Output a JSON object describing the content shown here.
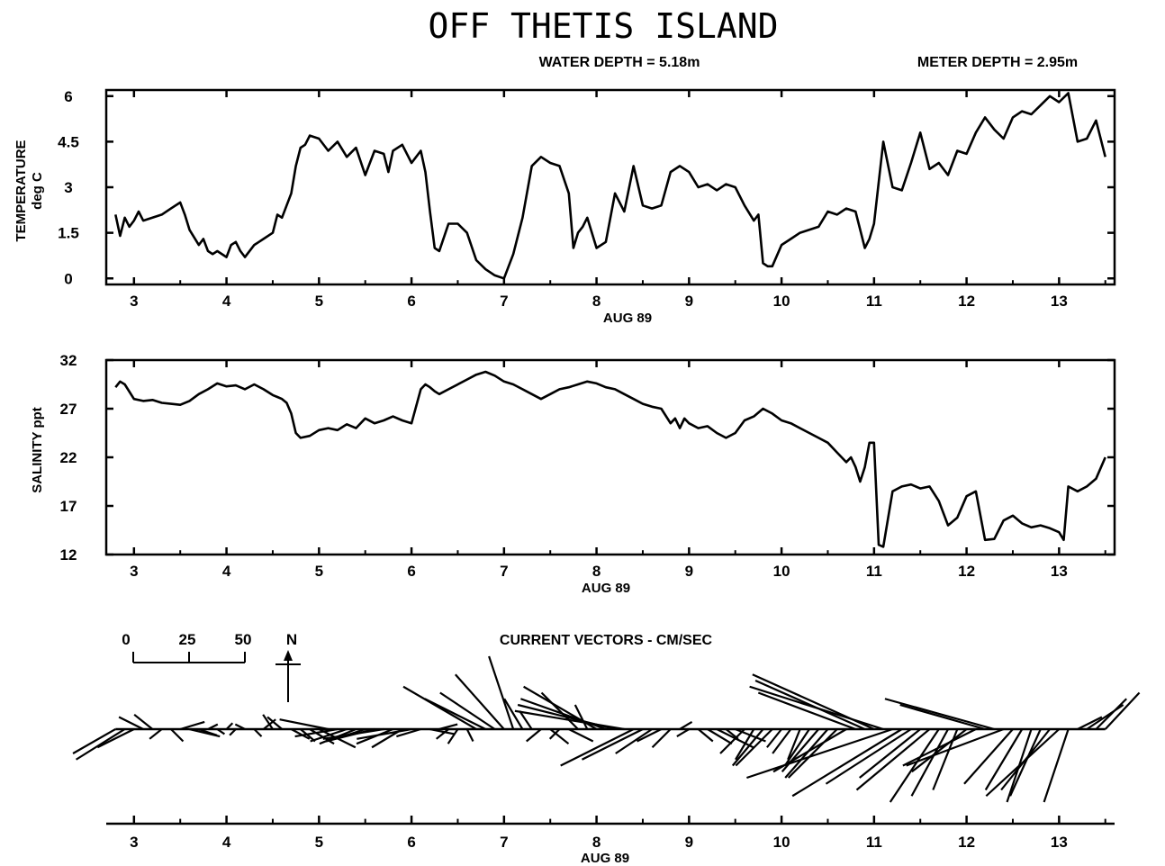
{
  "header": {
    "title": "OFF THETIS ISLAND",
    "water_depth": "WATER DEPTH = 5.18m",
    "meter_depth": "METER DEPTH = 2.95m"
  },
  "chart_data": [
    {
      "type": "line",
      "ylabel": "TEMPERATURE",
      "ylabel2": "deg C",
      "xlabel": "AUG 89",
      "xlim": [
        2.7,
        13.6
      ],
      "ylim": [
        -0.2,
        6.2
      ],
      "yticks": [
        0,
        1.5,
        3,
        4.5,
        6
      ],
      "ytick_labels": [
        "0",
        "1.5",
        "3",
        "4.5",
        "6"
      ],
      "xticks": [
        3,
        4,
        5,
        6,
        7,
        8,
        9,
        10,
        11,
        12,
        13
      ],
      "xtick_labels": [
        "3",
        "4",
        "5",
        "6",
        "7",
        "8",
        "9",
        "10",
        "11",
        "12",
        "13"
      ],
      "grid": false,
      "series": [
        {
          "x": [
            2.8,
            2.85,
            2.9,
            2.95,
            3.0,
            3.05,
            3.1,
            3.2,
            3.3,
            3.4,
            3.5,
            3.55,
            3.6,
            3.7,
            3.75,
            3.8,
            3.85,
            3.9,
            4.0,
            4.05,
            4.1,
            4.15,
            4.2,
            4.3,
            4.35,
            4.4,
            4.5,
            4.55,
            4.6,
            4.7,
            4.75,
            4.8,
            4.85,
            4.9,
            5.0,
            5.1,
            5.2,
            5.3,
            5.4,
            5.5,
            5.6,
            5.7,
            5.75,
            5.8,
            5.9,
            6.0,
            6.05,
            6.1,
            6.15,
            6.2,
            6.25,
            6.3,
            6.4,
            6.5,
            6.6,
            6.7,
            6.8,
            6.9,
            7.0,
            7.1,
            7.2,
            7.3,
            7.4,
            7.5,
            7.6,
            7.7,
            7.75,
            7.8,
            7.85,
            7.9,
            8.0,
            8.1,
            8.2,
            8.3,
            8.4,
            8.5,
            8.6,
            8.7,
            8.8,
            8.9,
            9.0,
            9.1,
            9.2,
            9.3,
            9.4,
            9.5,
            9.6,
            9.7,
            9.75,
            9.8,
            9.85,
            9.9,
            10.0,
            10.1,
            10.2,
            10.3,
            10.4,
            10.5,
            10.6,
            10.7,
            10.8,
            10.9,
            10.95,
            11.0,
            11.1,
            11.2,
            11.3,
            11.4,
            11.5,
            11.6,
            11.7,
            11.8,
            11.9,
            12.0,
            12.1,
            12.2,
            12.3,
            12.4,
            12.5,
            12.6,
            12.7,
            12.8,
            12.9,
            13.0,
            13.1,
            13.2,
            13.3,
            13.4,
            13.5
          ],
          "y": [
            2.1,
            1.4,
            2.0,
            1.7,
            1.9,
            2.2,
            1.9,
            2.0,
            2.1,
            2.3,
            2.5,
            2.1,
            1.6,
            1.1,
            1.3,
            0.9,
            0.8,
            0.9,
            0.7,
            1.1,
            1.2,
            0.9,
            0.7,
            1.1,
            1.2,
            1.3,
            1.5,
            2.1,
            2.0,
            2.8,
            3.7,
            4.3,
            4.4,
            4.7,
            4.6,
            4.2,
            4.5,
            4.0,
            4.3,
            3.4,
            4.2,
            4.1,
            3.5,
            4.2,
            4.4,
            3.8,
            4.0,
            4.2,
            3.5,
            2.2,
            1.0,
            0.9,
            1.8,
            1.8,
            1.5,
            0.6,
            0.3,
            0.1,
            0.0,
            0.8,
            2.0,
            3.7,
            4.0,
            3.8,
            3.7,
            2.8,
            1.0,
            1.5,
            1.7,
            2.0,
            1.0,
            1.2,
            2.8,
            2.2,
            3.7,
            2.4,
            2.3,
            2.4,
            3.5,
            3.7,
            3.5,
            3.0,
            3.1,
            2.9,
            3.1,
            3.0,
            2.4,
            1.9,
            2.1,
            0.5,
            0.4,
            0.4,
            1.1,
            1.3,
            1.5,
            1.6,
            1.7,
            2.2,
            2.1,
            2.3,
            2.2,
            1.0,
            1.3,
            1.8,
            4.5,
            3.0,
            2.9,
            3.8,
            4.8,
            3.6,
            3.8,
            3.4,
            4.2,
            4.1,
            4.8,
            5.3,
            4.9,
            4.6,
            5.3,
            5.5,
            5.4,
            5.7,
            6.0,
            5.8,
            6.1,
            4.5,
            4.6,
            5.2,
            4.0
          ]
        }
      ]
    },
    {
      "type": "line",
      "ylabel": "SALINITY ppt",
      "xlabel": "AUG 89",
      "xlim": [
        2.7,
        13.6
      ],
      "ylim": [
        12,
        32
      ],
      "yticks": [
        12,
        17,
        22,
        27,
        32
      ],
      "ytick_labels": [
        "12",
        "17",
        "22",
        "27",
        "32"
      ],
      "xticks": [
        3,
        4,
        5,
        6,
        7,
        8,
        9,
        10,
        11,
        12,
        13
      ],
      "xtick_labels": [
        "3",
        "4",
        "5",
        "6",
        "7",
        "8",
        "9",
        "10",
        "11",
        "12",
        "13"
      ],
      "grid": false,
      "series": [
        {
          "x": [
            2.8,
            2.85,
            2.9,
            3.0,
            3.1,
            3.2,
            3.3,
            3.4,
            3.5,
            3.6,
            3.7,
            3.8,
            3.9,
            4.0,
            4.1,
            4.2,
            4.3,
            4.4,
            4.5,
            4.55,
            4.6,
            4.65,
            4.7,
            4.75,
            4.8,
            4.9,
            5.0,
            5.1,
            5.2,
            5.3,
            5.4,
            5.5,
            5.6,
            5.7,
            5.8,
            5.9,
            6.0,
            6.1,
            6.15,
            6.2,
            6.25,
            6.3,
            6.4,
            6.5,
            6.6,
            6.7,
            6.8,
            6.9,
            7.0,
            7.1,
            7.2,
            7.3,
            7.4,
            7.5,
            7.6,
            7.7,
            7.8,
            7.9,
            8.0,
            8.1,
            8.2,
            8.3,
            8.4,
            8.5,
            8.6,
            8.7,
            8.8,
            8.85,
            8.9,
            8.95,
            9.0,
            9.1,
            9.2,
            9.3,
            9.4,
            9.5,
            9.6,
            9.7,
            9.8,
            9.9,
            10.0,
            10.1,
            10.2,
            10.3,
            10.4,
            10.5,
            10.6,
            10.7,
            10.75,
            10.8,
            10.85,
            10.9,
            10.95,
            11.0,
            11.05,
            11.1,
            11.2,
            11.3,
            11.4,
            11.5,
            11.6,
            11.7,
            11.8,
            11.9,
            12.0,
            12.1,
            12.2,
            12.3,
            12.4,
            12.5,
            12.6,
            12.7,
            12.8,
            12.9,
            13.0,
            13.05,
            13.1,
            13.2,
            13.3,
            13.4,
            13.5
          ],
          "y": [
            29.2,
            29.8,
            29.5,
            28.0,
            27.8,
            27.9,
            27.6,
            27.5,
            27.4,
            27.8,
            28.5,
            29.0,
            29.6,
            29.3,
            29.4,
            29.0,
            29.5,
            29.0,
            28.4,
            28.2,
            28.0,
            27.6,
            26.5,
            24.5,
            24.0,
            24.2,
            24.8,
            25.0,
            24.8,
            25.4,
            25.0,
            26.0,
            25.5,
            25.8,
            26.2,
            25.8,
            25.5,
            29.0,
            29.5,
            29.2,
            28.8,
            28.5,
            29.0,
            29.5,
            30.0,
            30.5,
            30.8,
            30.4,
            29.8,
            29.5,
            29.0,
            28.5,
            28.0,
            28.5,
            29.0,
            29.2,
            29.5,
            29.8,
            29.6,
            29.2,
            29.0,
            28.5,
            28.0,
            27.5,
            27.2,
            27.0,
            25.5,
            26.0,
            25.0,
            26.0,
            25.5,
            25.0,
            25.2,
            24.5,
            24.0,
            24.5,
            25.8,
            26.2,
            27.0,
            26.5,
            25.8,
            25.5,
            25.0,
            24.5,
            24.0,
            23.5,
            22.5,
            21.5,
            22.0,
            21.0,
            19.5,
            21.0,
            23.5,
            23.5,
            13.0,
            12.8,
            18.5,
            19.0,
            19.2,
            18.8,
            19.0,
            17.5,
            15.0,
            15.8,
            18.0,
            18.5,
            13.5,
            13.6,
            15.5,
            16.0,
            15.2,
            14.8,
            15.0,
            14.7,
            14.3,
            13.5,
            19.0,
            18.5,
            19.0,
            19.8,
            22.0
          ]
        }
      ]
    },
    {
      "type": "vector",
      "title": "CURRENT VECTORS - CM/SEC",
      "xlabel": "AUG 89",
      "scale_labels": [
        "0",
        "25",
        "50"
      ],
      "north_label": "N",
      "xlim": [
        2.7,
        13.6
      ],
      "xticks": [
        3,
        4,
        5,
        6,
        7,
        8,
        9,
        10,
        11,
        12,
        13
      ],
      "xtick_labels": [
        "3",
        "4",
        "5",
        "6",
        "7",
        "8",
        "9",
        "10",
        "11",
        "12",
        "13"
      ],
      "vectors": {
        "x": [
          2.8,
          2.9,
          3.0,
          3.1,
          3.2,
          3.3,
          3.4,
          3.5,
          3.6,
          3.7,
          3.8,
          3.9,
          4.0,
          4.1,
          4.2,
          4.3,
          4.4,
          4.5,
          4.6,
          4.7,
          4.8,
          4.9,
          5.0,
          5.1,
          5.2,
          5.3,
          5.4,
          5.5,
          5.6,
          5.7,
          5.8,
          5.9,
          6.0,
          6.1,
          6.2,
          6.3,
          6.4,
          6.5,
          6.6,
          6.7,
          6.8,
          6.9,
          7.0,
          7.1,
          7.2,
          7.3,
          7.4,
          7.5,
          7.6,
          7.7,
          7.8,
          7.9,
          8.0,
          8.1,
          8.2,
          8.3,
          8.4,
          8.5,
          8.6,
          8.7,
          8.8,
          8.9,
          9.0,
          9.1,
          9.2,
          9.3,
          9.4,
          9.5,
          9.6,
          9.7,
          9.8,
          9.9,
          10.0,
          10.1,
          10.2,
          10.3,
          10.4,
          10.5,
          10.6,
          10.7,
          10.8,
          10.9,
          11.0,
          11.1,
          11.2,
          11.3,
          11.4,
          11.5,
          11.6,
          11.7,
          11.8,
          11.9,
          12.0,
          12.1,
          12.2,
          12.3,
          12.4,
          12.5,
          12.6,
          12.7,
          12.8,
          12.9,
          13.0,
          13.1,
          13.2,
          13.3,
          13.4,
          13.5
        ],
        "u": [
          -35,
          -40,
          -30,
          -20,
          -15,
          -10,
          10,
          20,
          25,
          15,
          8,
          6,
          5,
          -5,
          -8,
          6,
          10,
          -8,
          -12,
          15,
          12,
          20,
          30,
          -40,
          -35,
          -30,
          -30,
          -25,
          -40,
          -50,
          -30,
          -25,
          -45,
          -20,
          20,
          15,
          -10,
          -8,
          5,
          -60,
          -50,
          -45,
          -40,
          -20,
          -15,
          -10,
          -12,
          15,
          -8,
          20,
          -30,
          -10,
          -60,
          -70,
          -80,
          -90,
          -60,
          -50,
          -30,
          -20,
          -15,
          10,
          -10,
          12,
          20,
          30,
          10,
          25,
          -20,
          -15,
          -25,
          -30,
          -12,
          -15,
          -10,
          -20,
          -30,
          -35,
          -40,
          -60,
          -80,
          -90,
          -100,
          -110,
          -120,
          -90,
          -70,
          -50,
          -60,
          -40,
          -30,
          -20,
          -45,
          -60,
          -70,
          -90,
          -80,
          -40,
          -30,
          -20,
          -25,
          -40,
          -60,
          -20,
          20,
          30,
          25,
          28
        ],
        "v": [
          -20,
          -25,
          -15,
          10,
          12,
          -8,
          -10,
          6,
          -6,
          -5,
          4,
          -4,
          5,
          -5,
          4,
          -6,
          8,
          12,
          10,
          -8,
          -10,
          -12,
          -15,
          8,
          -6,
          -10,
          -12,
          -8,
          -10,
          -8,
          -12,
          -15,
          -8,
          -6,
          -4,
          4,
          -8,
          -12,
          -10,
          35,
          25,
          30,
          45,
          60,
          25,
          15,
          -10,
          -12,
          -8,
          -10,
          30,
          20,
          35,
          25,
          20,
          15,
          -30,
          -25,
          -20,
          -10,
          -15,
          6,
          -6,
          -10,
          -12,
          -15,
          -8,
          -10,
          -20,
          -25,
          -30,
          -30,
          -15,
          -20,
          -25,
          -30,
          -35,
          -40,
          -40,
          -35,
          30,
          40,
          45,
          35,
          -40,
          -55,
          -45,
          -40,
          -50,
          -60,
          -55,
          -50,
          -35,
          -30,
          20,
          25,
          -30,
          -45,
          -50,
          -60,
          -55,
          -50,
          -55,
          -60,
          10,
          20,
          25,
          30
        ]
      }
    }
  ]
}
